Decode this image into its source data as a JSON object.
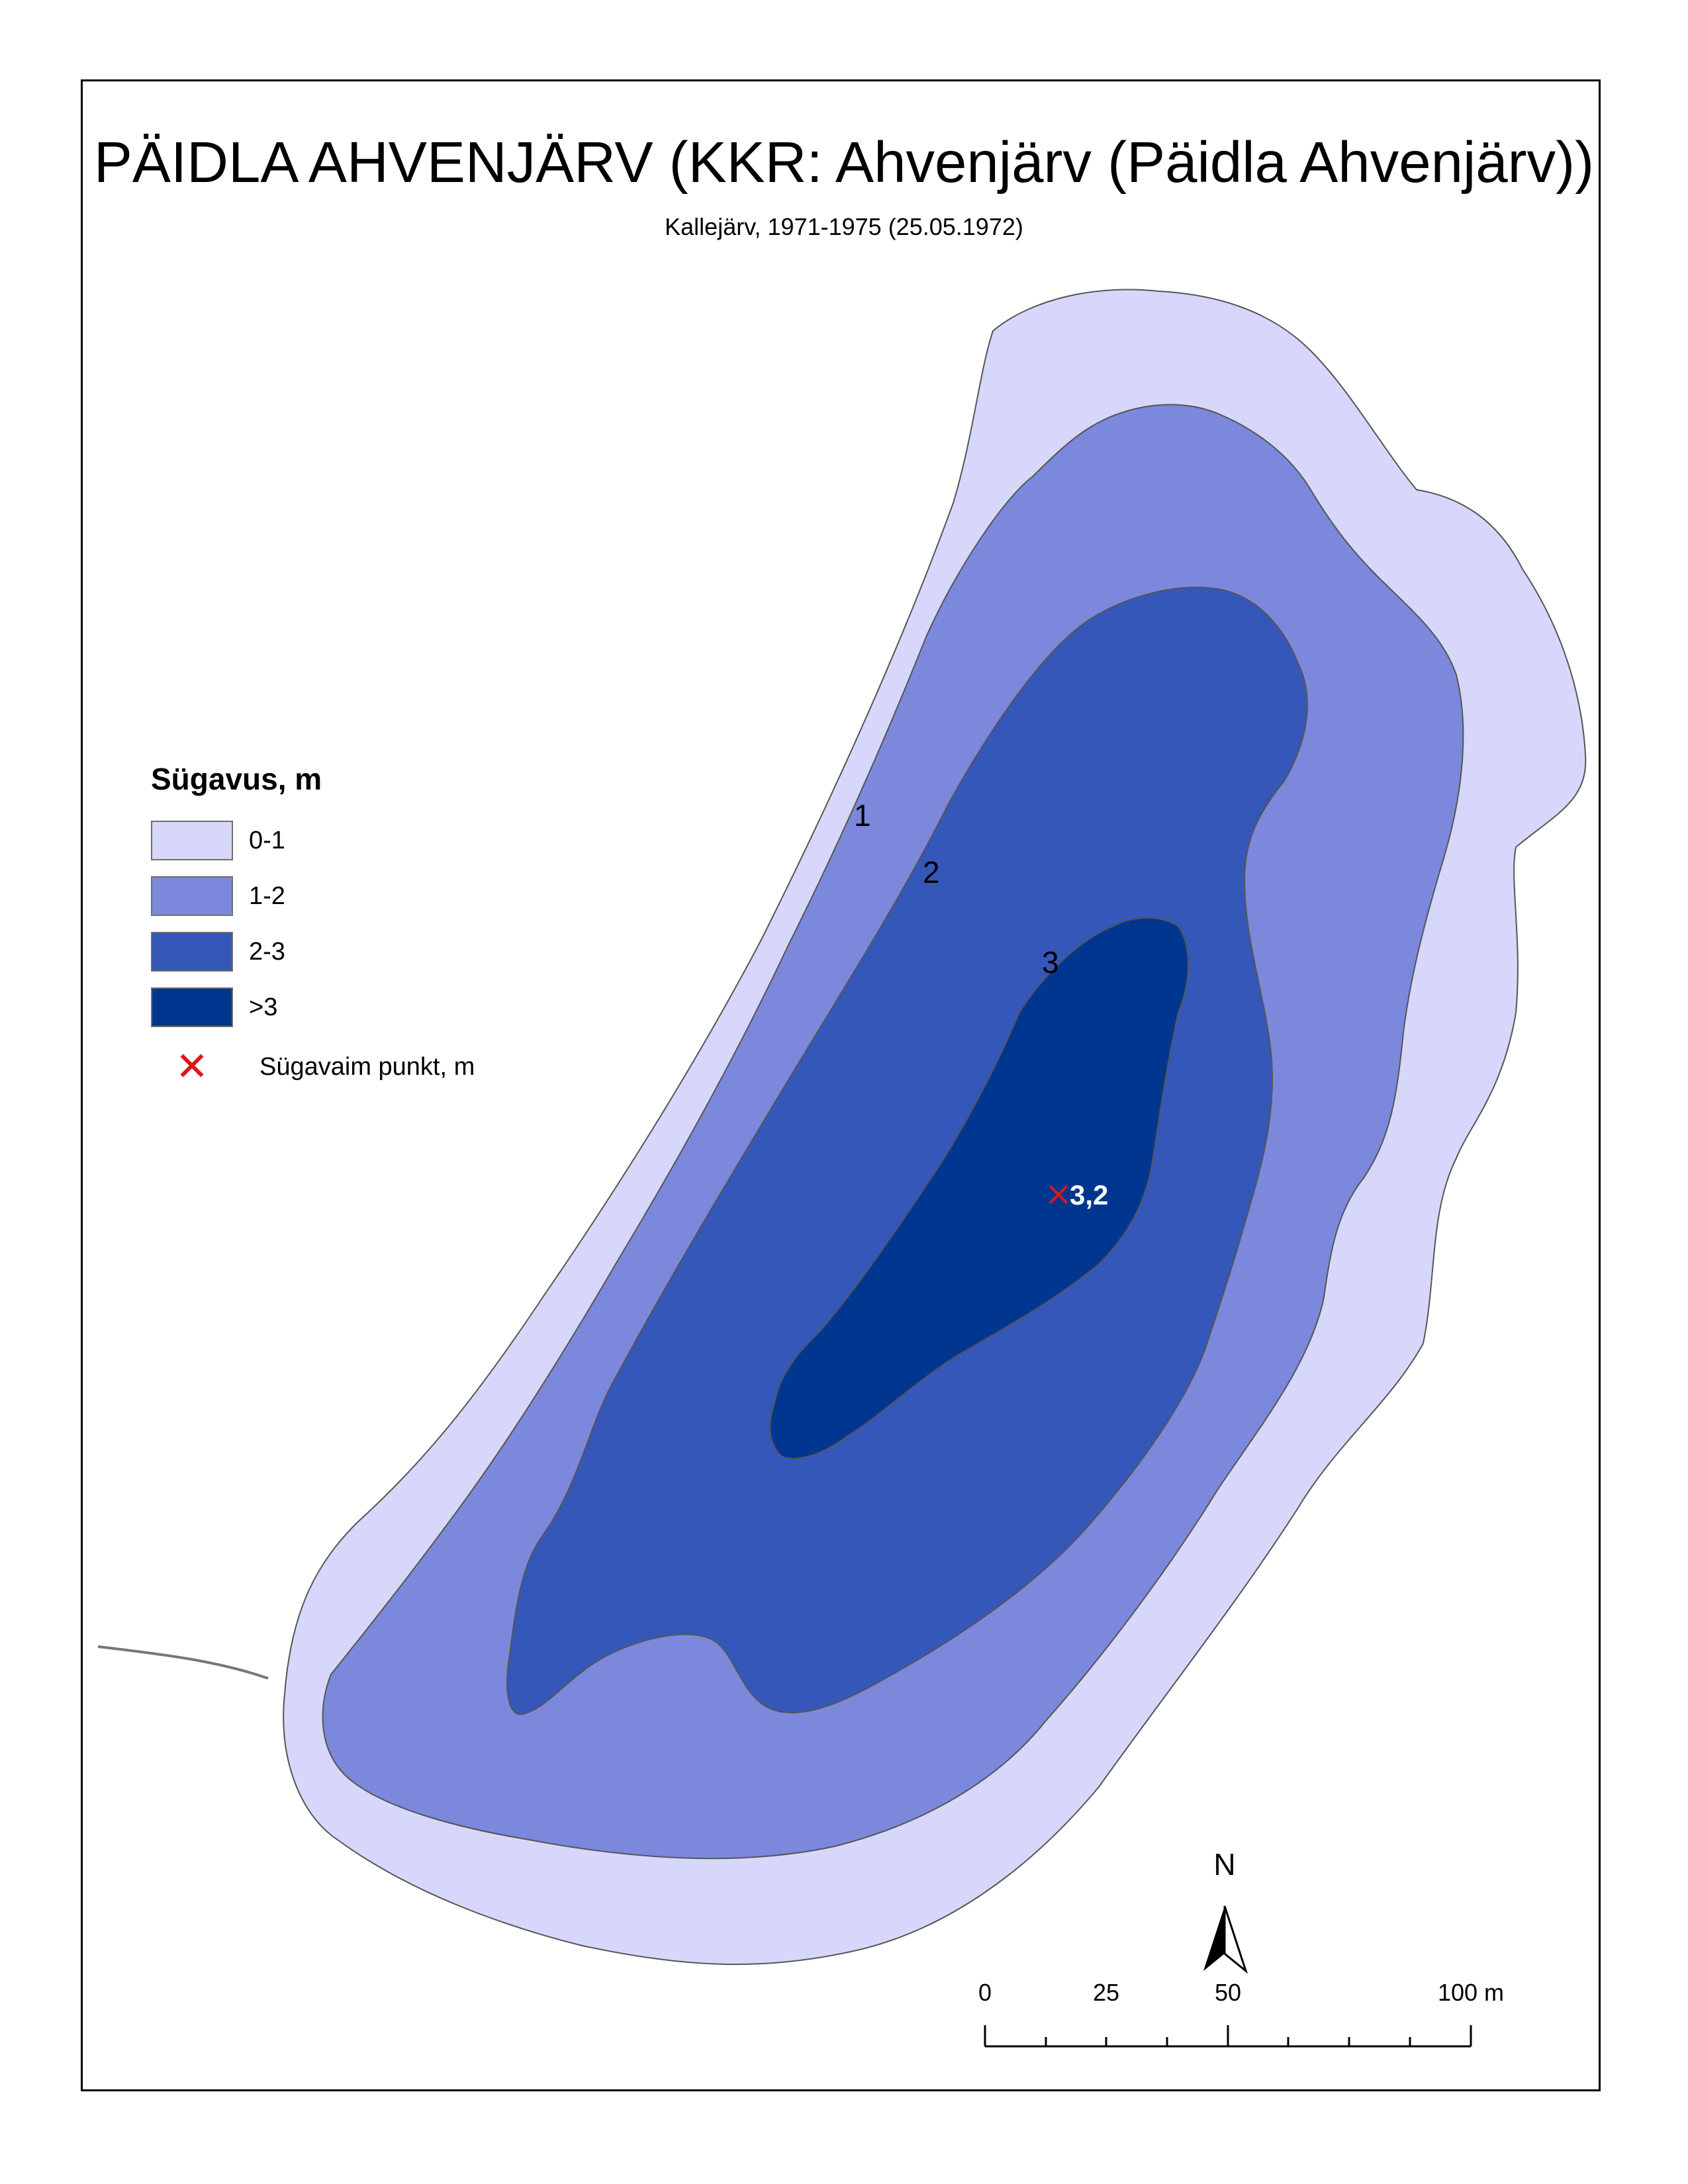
{
  "title": "PÄIDLA AHVENJÄRV (KKR: Ahvenjärv (Päidla Ahvenjärv))",
  "subtitle": "Kallejärv, 1971-1975 (25.05.1972)",
  "legend": {
    "title": "Sügavus, m",
    "classes": [
      {
        "label": "0-1",
        "color": "#d7d7fb"
      },
      {
        "label": "1-2",
        "color": "#7b88db"
      },
      {
        "label": "2-3",
        "color": "#3457b9"
      },
      {
        "label": ">3",
        "color": "#00368f"
      }
    ],
    "deepest_point_label": "Sügavaim punkt, m",
    "deepest_point_color": "#e0151a"
  },
  "contour_labels": [
    "1",
    "2",
    "3"
  ],
  "deepest_point_value": "3,2",
  "north_arrow": {
    "label": "N"
  },
  "scale_bar": {
    "ticks": [
      "0",
      "25",
      "50",
      "100 m"
    ]
  }
}
